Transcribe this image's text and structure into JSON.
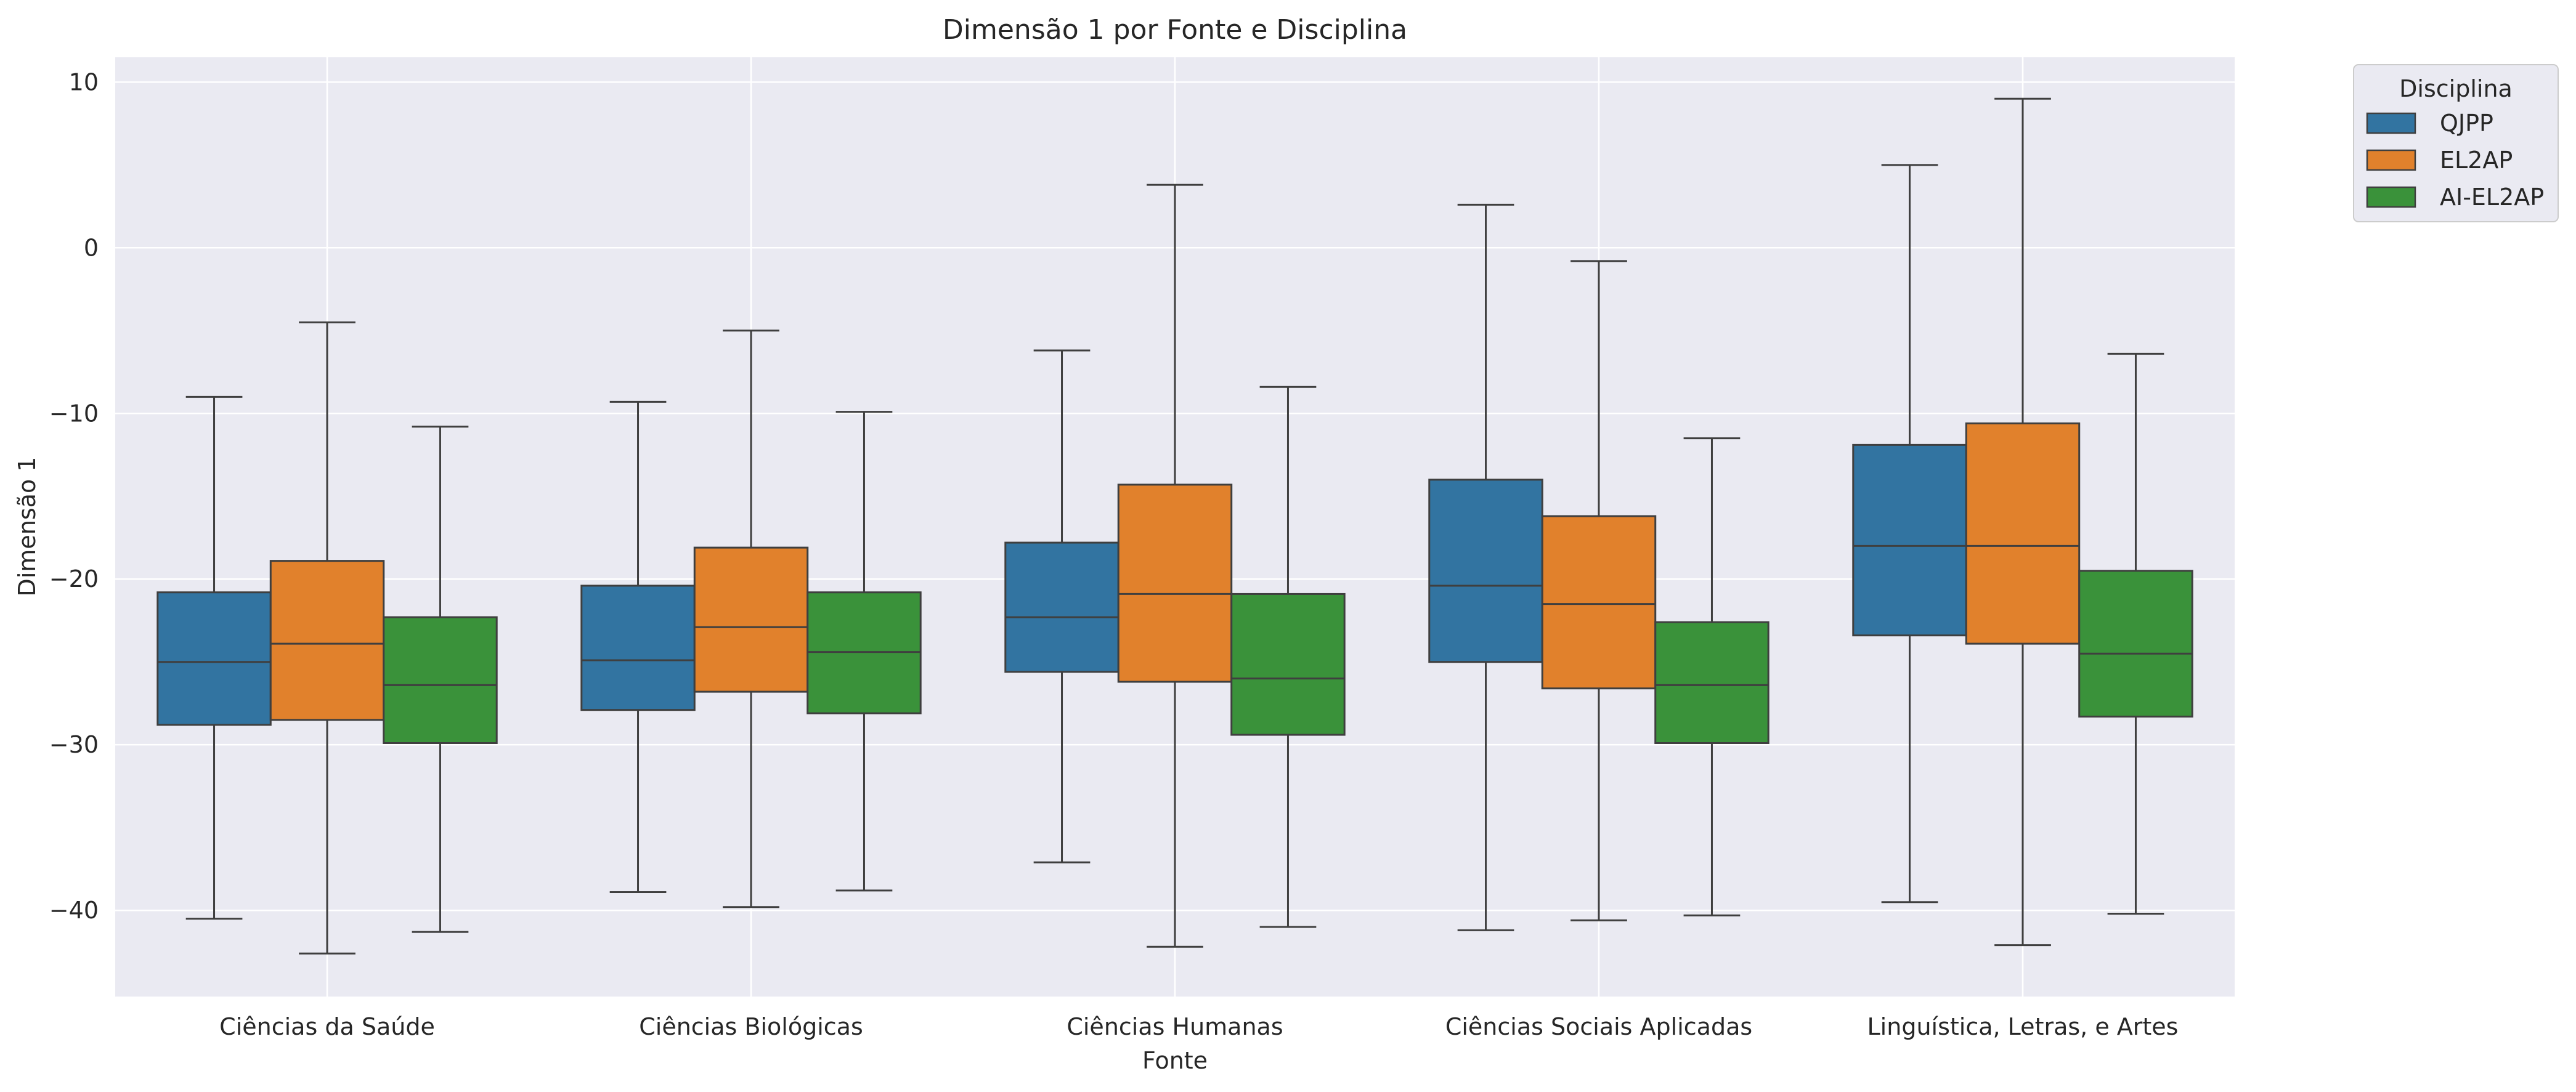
{
  "chart_data": {
    "type": "boxplot",
    "title": "Dimensão 1 por Fonte e Disciplina",
    "xlabel": "Fonte",
    "ylabel": "Dimensão 1",
    "ylim": [
      -45.2,
      11.5
    ],
    "yticks": [
      10,
      0,
      -10,
      -20,
      -30,
      -40
    ],
    "ytick_labels": [
      "10",
      "0",
      "−10",
      "−20",
      "−30",
      "−40"
    ],
    "grid": true,
    "legend_title": "Disciplina",
    "legend_position": "outside-top-right",
    "categories": [
      "Ciências da Saúde",
      "Ciências Biológicas",
      "Ciências Humanas",
      "Ciências Sociais Aplicadas",
      "Linguística, Letras, e Artes"
    ],
    "series": [
      {
        "name": "QJPP",
        "color": "#3274a1",
        "boxes": [
          {
            "whislo": -40.5,
            "q1": -28.8,
            "med": -25.0,
            "q3": -20.8,
            "whishi": -9.0
          },
          {
            "whislo": -38.9,
            "q1": -27.9,
            "med": -24.9,
            "q3": -20.4,
            "whishi": -9.3
          },
          {
            "whislo": -37.1,
            "q1": -25.6,
            "med": -22.3,
            "q3": -17.8,
            "whishi": -6.2
          },
          {
            "whislo": -41.2,
            "q1": -25.0,
            "med": -20.4,
            "q3": -14.0,
            "whishi": 2.6
          },
          {
            "whislo": -39.5,
            "q1": -23.4,
            "med": -18.0,
            "q3": -11.9,
            "whishi": 5.0
          }
        ]
      },
      {
        "name": "EL2AP",
        "color": "#e1812c",
        "boxes": [
          {
            "whislo": -42.6,
            "q1": -28.5,
            "med": -23.9,
            "q3": -18.9,
            "whishi": -4.5
          },
          {
            "whislo": -39.8,
            "q1": -26.8,
            "med": -22.9,
            "q3": -18.1,
            "whishi": -5.0
          },
          {
            "whislo": -42.2,
            "q1": -26.2,
            "med": -20.9,
            "q3": -14.3,
            "whishi": 3.8
          },
          {
            "whislo": -40.6,
            "q1": -26.6,
            "med": -21.5,
            "q3": -16.2,
            "whishi": -0.8
          },
          {
            "whislo": -42.1,
            "q1": -23.9,
            "med": -18.0,
            "q3": -10.6,
            "whishi": 9.0
          }
        ]
      },
      {
        "name": "AI-EL2AP",
        "color": "#3a923a",
        "boxes": [
          {
            "whislo": -41.3,
            "q1": -29.9,
            "med": -26.4,
            "q3": -22.3,
            "whishi": -10.8
          },
          {
            "whislo": -38.8,
            "q1": -28.1,
            "med": -24.4,
            "q3": -20.8,
            "whishi": -9.9
          },
          {
            "whislo": -41.0,
            "q1": -29.4,
            "med": -26.0,
            "q3": -20.9,
            "whishi": -8.4
          },
          {
            "whislo": -40.3,
            "q1": -29.9,
            "med": -26.4,
            "q3": -22.6,
            "whishi": -11.5
          },
          {
            "whislo": -40.2,
            "q1": -28.3,
            "med": -24.5,
            "q3": -19.5,
            "whishi": -6.4
          }
        ]
      }
    ]
  }
}
